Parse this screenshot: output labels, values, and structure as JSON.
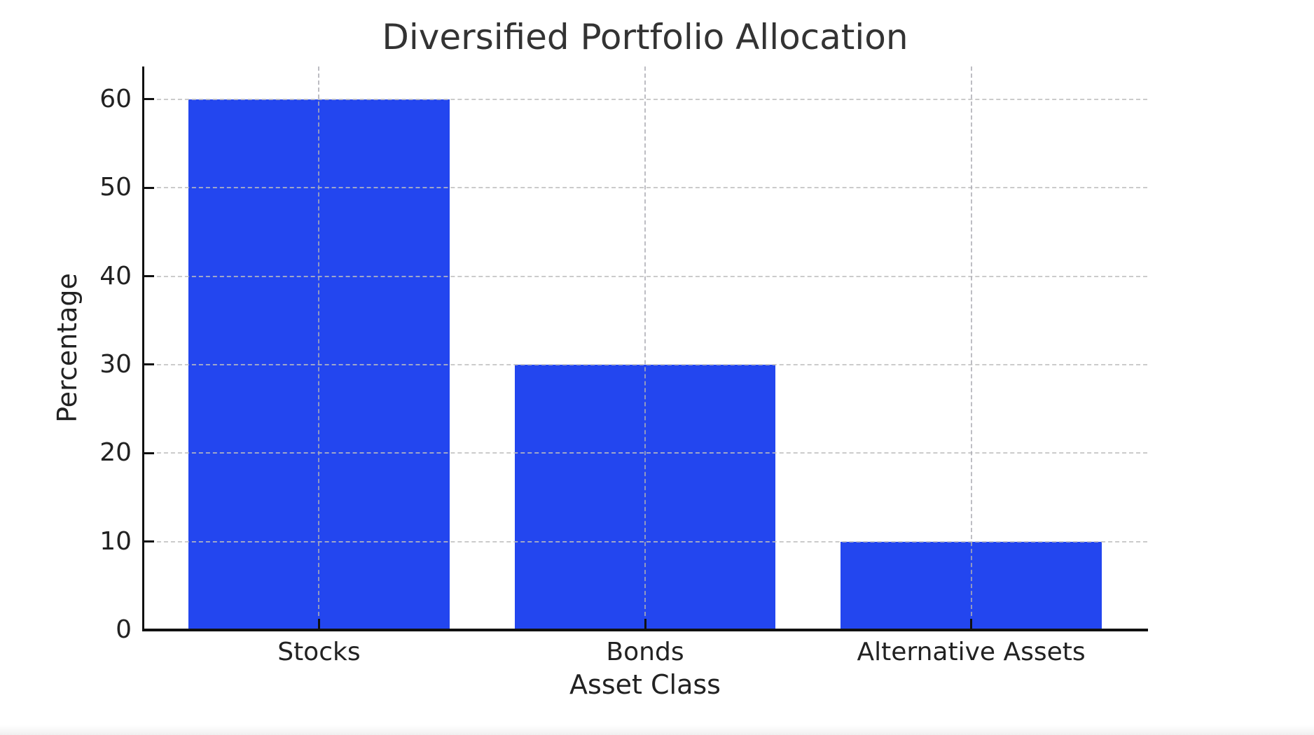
{
  "chart_data": {
    "type": "bar",
    "title": "Diversified Portfolio Allocation",
    "xlabel": "Asset Class",
    "ylabel": "Percentage",
    "categories": [
      "Stocks",
      "Bonds",
      "Alternative Assets"
    ],
    "values": [
      60,
      30,
      10
    ],
    "yticks": [
      0,
      10,
      20,
      30,
      40,
      50,
      60
    ],
    "ylim": [
      0,
      63.7
    ],
    "x_margin": 0.54,
    "bar_width": 0.8,
    "bar_color": "#2346ef",
    "grid": "dashed",
    "grid_color_horizontal": "rgba(190,190,190,0.8)",
    "grid_color_vertical": "rgba(172,172,180,0.8)",
    "axis_color": "#111111",
    "text_color": "#222222",
    "title_color": "#333333",
    "background_color": "#ffffff",
    "tick_direction": "in",
    "legend": "none"
  }
}
